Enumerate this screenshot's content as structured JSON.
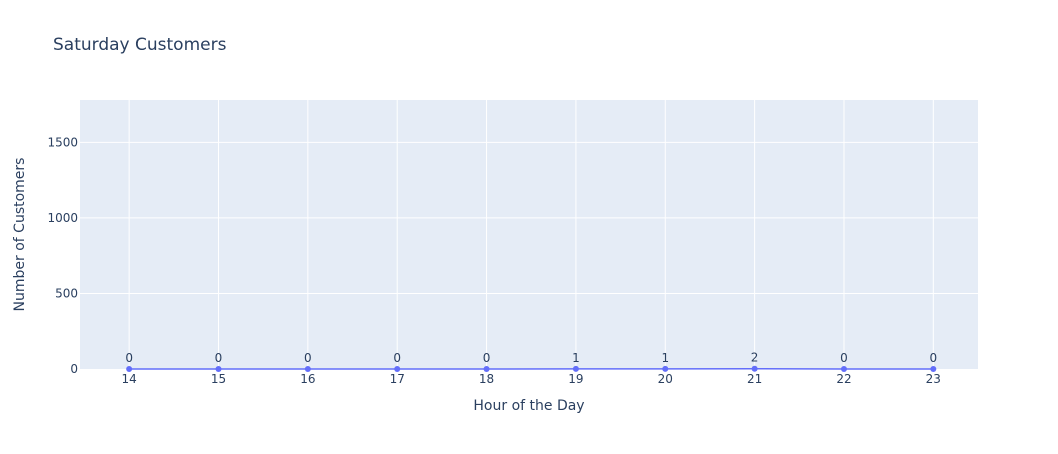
{
  "chart_data": {
    "type": "line",
    "title": "Saturday Customers",
    "xlabel": "Hour of the Day",
    "ylabel": "Number of Customers",
    "x": [
      14,
      15,
      16,
      17,
      18,
      19,
      20,
      21,
      22,
      23
    ],
    "values": [
      0,
      0,
      0,
      0,
      0,
      1,
      1,
      2,
      0,
      0
    ],
    "ylim": [
      0,
      1780
    ],
    "yticks": [
      0,
      500,
      1000,
      1500
    ],
    "xlim": [
      13.45,
      23.5
    ],
    "grid": true,
    "show_data_labels": true,
    "colors": {
      "plot_bg": "#e5ecf6",
      "grid": "#ffffff",
      "line": "#636efa",
      "text": "#2a3f5f"
    }
  }
}
